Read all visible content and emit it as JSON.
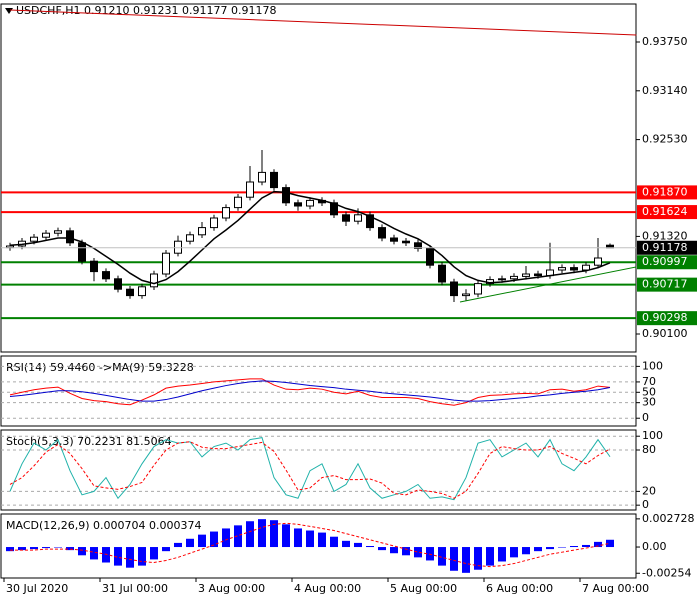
{
  "chart_data": [
    {
      "type": "candlestick",
      "title": "USDCHF,H1  0.91210 0.91231 0.91177 0.91178",
      "categories": [
        "30 Jul 2020",
        null,
        null,
        null,
        null,
        null,
        null,
        null,
        "31 Jul 00:00",
        null,
        null,
        null,
        null,
        null,
        null,
        null,
        "3 Aug 00:00",
        null,
        null,
        null,
        null,
        null,
        null,
        null,
        "4 Aug 00:00",
        null,
        null,
        null,
        null,
        null,
        null,
        null,
        "5 Aug 00:00",
        null,
        null,
        null,
        null,
        null,
        null,
        null,
        "6 Aug 00:00",
        null,
        null,
        null,
        null,
        null,
        null,
        null,
        "7 Aug 00:00",
        null,
        null
      ],
      "open": [
        0.9118,
        0.912,
        0.9126,
        0.9131,
        0.9136,
        0.9139,
        0.9124,
        0.9101,
        0.9088,
        0.9079,
        0.9066,
        0.9058,
        0.9069,
        0.9085,
        0.9111,
        0.9126,
        0.9134,
        0.9143,
        0.9155,
        0.9168,
        0.9181,
        0.92,
        0.9212,
        0.9193,
        0.9174,
        0.917,
        0.9177,
        0.9174,
        0.9159,
        0.9151,
        0.9159,
        0.9143,
        0.913,
        0.9126,
        0.9124,
        0.9117,
        0.9096,
        0.9075,
        0.9058,
        0.906,
        0.9073,
        0.9078,
        0.9079,
        0.9082,
        0.9085,
        0.9083,
        0.909,
        0.9093,
        0.909,
        0.9096,
        0.9121
      ],
      "high": [
        0.9124,
        0.913,
        0.9135,
        0.914,
        0.9143,
        0.9143,
        0.9128,
        0.9105,
        0.9092,
        0.9083,
        0.907,
        0.9073,
        0.9089,
        0.9115,
        0.9133,
        0.9138,
        0.915,
        0.9159,
        0.9172,
        0.9185,
        0.922,
        0.924,
        0.9216,
        0.9197,
        0.9178,
        0.9181,
        0.9181,
        0.9178,
        0.9163,
        0.9167,
        0.9163,
        0.9147,
        0.9134,
        0.913,
        0.9128,
        0.9121,
        0.91,
        0.9079,
        0.9066,
        0.9077,
        0.9082,
        0.9083,
        0.9086,
        0.9095,
        0.9089,
        0.9124,
        0.9097,
        0.9097,
        0.91,
        0.913,
        0.91231
      ],
      "low": [
        0.9114,
        0.9116,
        0.9122,
        0.9127,
        0.9132,
        0.912,
        0.9097,
        0.9076,
        0.9075,
        0.9062,
        0.9054,
        0.9054,
        0.9065,
        0.9081,
        0.9107,
        0.9122,
        0.913,
        0.9139,
        0.9151,
        0.9164,
        0.9177,
        0.9196,
        0.9189,
        0.917,
        0.9164,
        0.9166,
        0.917,
        0.9155,
        0.9145,
        0.9147,
        0.9139,
        0.9126,
        0.9122,
        0.912,
        0.9113,
        0.9092,
        0.9071,
        0.905,
        0.9052,
        0.9056,
        0.9069,
        0.9074,
        0.9075,
        0.9078,
        0.9079,
        0.9079,
        0.9086,
        0.9086,
        0.9086,
        0.9092,
        0.91177
      ],
      "close": [
        0.912,
        0.9126,
        0.9131,
        0.9136,
        0.9139,
        0.9124,
        0.9101,
        0.9088,
        0.9079,
        0.9066,
        0.9058,
        0.9069,
        0.9085,
        0.9111,
        0.9126,
        0.9134,
        0.9143,
        0.9155,
        0.9168,
        0.9181,
        0.92,
        0.9212,
        0.9193,
        0.9174,
        0.917,
        0.9177,
        0.9174,
        0.9159,
        0.9151,
        0.9159,
        0.9143,
        0.913,
        0.9126,
        0.9124,
        0.9117,
        0.9096,
        0.9075,
        0.9058,
        0.906,
        0.9073,
        0.9078,
        0.9079,
        0.9082,
        0.9085,
        0.9083,
        0.909,
        0.9093,
        0.909,
        0.9096,
        0.9105,
        0.91178
      ],
      "up_color": "#ffffff",
      "down_color": "#000000",
      "edge_color": "#000000",
      "overlay": {
        "color": "#000000",
        "values": [
          0.9121,
          0.9122,
          0.9124,
          0.9127,
          0.913,
          0.913,
          0.9125,
          0.9117,
          0.9107,
          0.9097,
          0.9086,
          0.9077,
          0.9073,
          0.9078,
          0.9088,
          0.9101,
          0.9115,
          0.9129,
          0.914,
          0.9152,
          0.9166,
          0.918,
          0.9188,
          0.9187,
          0.9183,
          0.918,
          0.9177,
          0.9173,
          0.9167,
          0.9163,
          0.9157,
          0.915,
          0.9142,
          0.9135,
          0.9129,
          0.912,
          0.9108,
          0.9094,
          0.9083,
          0.9077,
          0.9074,
          0.9075,
          0.9077,
          0.9079,
          0.9081,
          0.9083,
          0.9085,
          0.9087,
          0.9089,
          0.9093,
          0.9099
        ]
      },
      "ylim": [
        0.89875,
        0.94225
      ],
      "yticks": [
        {
          "value": 0.9375,
          "label": "0.93750"
        },
        {
          "value": 0.9314,
          "label": "0.93140"
        },
        {
          "value": 0.9253,
          "label": "0.92530"
        },
        {
          "value": 0.9132,
          "label": "0.91320"
        },
        {
          "value": 0.901,
          "label": "0.90100"
        }
      ],
      "levels": [
        {
          "value": 0.9187,
          "label": "0.91870",
          "color": "#ff0000"
        },
        {
          "value": 0.91624,
          "label": "0.91624",
          "color": "#ff0000"
        },
        {
          "value": 0.90997,
          "label": "0.90997",
          "color": "#008000"
        },
        {
          "value": 0.90717,
          "label": "0.90717",
          "color": "#008000"
        },
        {
          "value": 0.90298,
          "label": "0.90298",
          "color": "#008000"
        }
      ],
      "last_price": {
        "value": 0.91178,
        "label": "0.91178"
      },
      "trendlines": [
        {
          "color": "#cc0000",
          "x": [
            0,
            52.2
          ],
          "y": [
            0.9415,
            0.93838
          ]
        },
        {
          "color": "#008000",
          "x": [
            37.5,
            52.2
          ],
          "y": [
            0.905,
            0.90938
          ]
        }
      ]
    },
    {
      "type": "line",
      "title": "RSI(14) 59.4460  ->MA(9) 59.3228",
      "ylim": [
        -15,
        120
      ],
      "yticks": [
        100,
        70,
        50,
        30,
        0
      ],
      "grid": true,
      "series": [
        {
          "color": "#ff0000",
          "values": [
            45,
            50,
            55,
            58,
            60,
            48,
            38,
            34,
            32,
            28,
            26,
            35,
            45,
            58,
            62,
            64,
            67,
            70,
            72,
            74,
            76,
            76,
            64,
            56,
            55,
            58,
            56,
            50,
            47,
            52,
            44,
            40,
            40,
            40,
            38,
            32,
            28,
            25,
            30,
            40,
            44,
            45,
            47,
            48,
            47,
            55,
            56,
            52,
            55,
            62,
            59.446
          ]
        },
        {
          "color": "#0000cc",
          "values": [
            42,
            44,
            47,
            50,
            53,
            53,
            51,
            48,
            44,
            40,
            36,
            33,
            33,
            36,
            41,
            47,
            53,
            58,
            63,
            67,
            70,
            72,
            71,
            69,
            66,
            63,
            61,
            59,
            56,
            54,
            52,
            49,
            47,
            45,
            43,
            41,
            38,
            35,
            33,
            33,
            34,
            36,
            38,
            40,
            43,
            45,
            48,
            50,
            52,
            55,
            59.3228
          ]
        }
      ]
    },
    {
      "type": "line",
      "title": "Stoch(5,3,3) 70.2231 81.5064",
      "ylim": [
        -7,
        109
      ],
      "yticks": [
        100,
        80,
        20,
        0
      ],
      "grid": true,
      "series": [
        {
          "color": "#20b2aa",
          "values": [
            20,
            60,
            90,
            80,
            95,
            50,
            15,
            20,
            40,
            10,
            30,
            60,
            85,
            95,
            90,
            92,
            70,
            85,
            90,
            80,
            95,
            98,
            40,
            15,
            10,
            50,
            60,
            20,
            30,
            60,
            25,
            10,
            15,
            20,
            30,
            10,
            12,
            8,
            40,
            90,
            95,
            70,
            80,
            90,
            70,
            95,
            60,
            50,
            70,
            95,
            70.2231
          ]
        },
        {
          "color": "#ff0000",
          "dash": true,
          "values": [
            30,
            40,
            57,
            77,
            88,
            75,
            53,
            28,
            25,
            23,
            27,
            33,
            58,
            80,
            90,
            92,
            84,
            82,
            82,
            85,
            88,
            91,
            78,
            51,
            22,
            25,
            40,
            43,
            37,
            37,
            38,
            32,
            17,
            15,
            22,
            20,
            17,
            10,
            20,
            46,
            75,
            85,
            82,
            80,
            80,
            85,
            75,
            68,
            60,
            72,
            81.5064
          ]
        }
      ]
    },
    {
      "type": "bar",
      "title": "MACD(12,26,9) 0.000704 0.000374",
      "ylim": [
        -0.003,
        0.0032
      ],
      "yticks": [
        0.002728,
        {
          "value": 0,
          "label": "0.00"
        },
        -0.00254
      ],
      "series": [
        {
          "color": "#0000ff",
          "kind": "bar",
          "values": [
            -0.0004,
            -0.0003,
            -0.0002,
            -0.0001,
            0,
            -0.0003,
            -0.0008,
            -0.0012,
            -0.0015,
            -0.0018,
            -0.002,
            -0.0018,
            -0.0012,
            -0.0004,
            0.0004,
            0.0008,
            0.0012,
            0.0015,
            0.0018,
            0.0021,
            0.0025,
            0.0027,
            0.0026,
            0.0022,
            0.0018,
            0.0016,
            0.0014,
            0.001,
            0.0006,
            0.0004,
            0.0001,
            -0.0003,
            -0.0006,
            -0.0008,
            -0.001,
            -0.0013,
            -0.0018,
            -0.0023,
            -0.0025,
            -0.0022,
            -0.0018,
            -0.0014,
            -0.001,
            -0.0007,
            -0.0004,
            -0.0002,
            0,
            0.0001,
            0.0002,
            0.0005,
            0.000704
          ]
        },
        {
          "color": "#ff0000",
          "kind": "line",
          "dash": true,
          "values": [
            -0.0003,
            -0.0003,
            -0.0003,
            -0.0002,
            -0.0002,
            -0.0002,
            -0.0003,
            -0.0005,
            -0.0007,
            -0.001,
            -0.0012,
            -0.0014,
            -0.0015,
            -0.0013,
            -0.001,
            -0.0006,
            -0.0002,
            0.0002,
            0.0007,
            0.0011,
            0.0015,
            0.0019,
            0.0022,
            0.0023,
            0.0022,
            0.002,
            0.0018,
            0.0016,
            0.0013,
            0.001,
            0.0007,
            0.0004,
            0.0001,
            -0.0002,
            -0.0005,
            -0.0007,
            -0.001,
            -0.0013,
            -0.0016,
            -0.0018,
            -0.0019,
            -0.0018,
            -0.0016,
            -0.0013,
            -0.001,
            -0.0007,
            -0.0005,
            -0.0003,
            -0.0001,
            0.0001,
            0.000374
          ]
        }
      ]
    }
  ]
}
